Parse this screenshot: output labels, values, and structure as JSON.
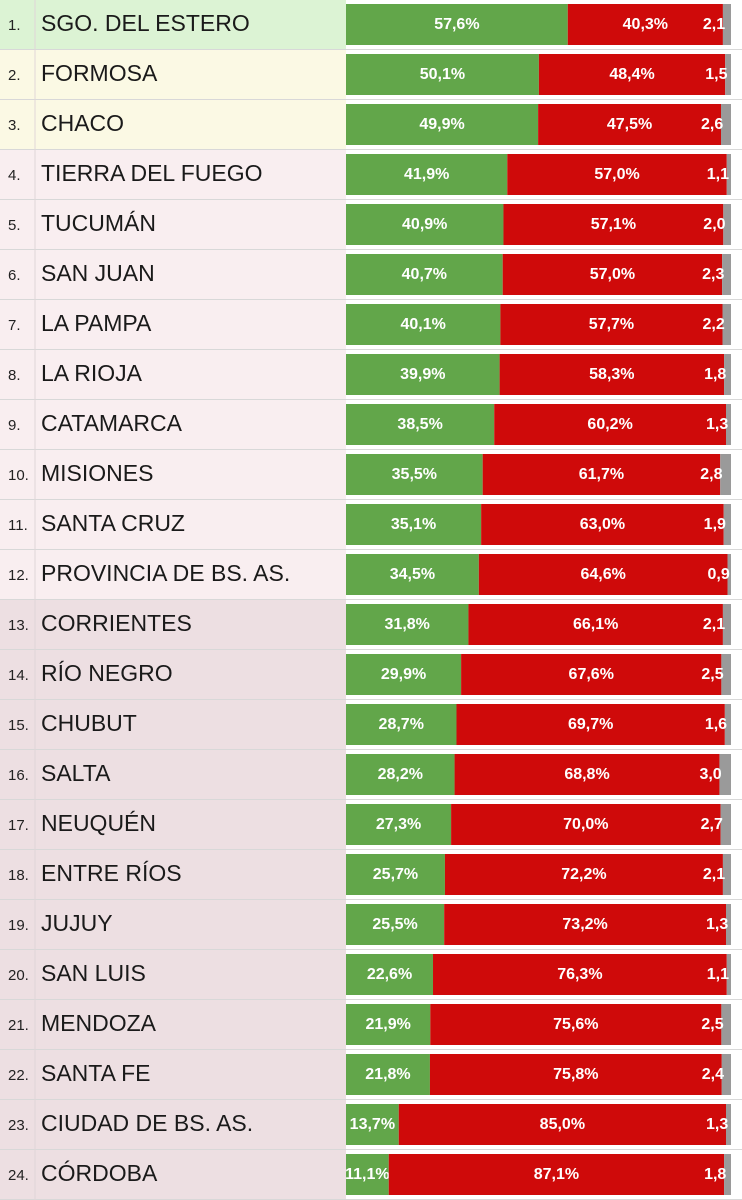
{
  "chart_data": {
    "type": "bar",
    "orientation": "horizontal",
    "stacked": true,
    "ranks": [
      "1.",
      "2.",
      "3.",
      "4.",
      "5.",
      "6.",
      "7.",
      "8.",
      "9.",
      "10.",
      "11.",
      "12.",
      "13.",
      "14.",
      "15.",
      "16.",
      "17.",
      "18.",
      "19.",
      "20.",
      "21.",
      "22.",
      "23.",
      "24."
    ],
    "categories": [
      "SGO. DEL ESTERO",
      "FORMOSA",
      "CHACO",
      "TIERRA DEL FUEGO",
      "TUCUMÁN",
      "SAN JUAN",
      "LA PAMPA",
      "LA RIOJA",
      "CATAMARCA",
      "MISIONES",
      "SANTA CRUZ",
      "PROVINCIA DE BS. AS.",
      "CORRIENTES",
      "RÍO NEGRO",
      "CHUBUT",
      "SALTA",
      "NEUQUÉN",
      "ENTRE RÍOS",
      "JUJUY",
      "SAN LUIS",
      "MENDOZA",
      "SANTA FE",
      "CIUDAD DE BS. AS.",
      "CÓRDOBA"
    ],
    "row_colors": [
      "#dcf3d4",
      "#fbf9e4",
      "#fbf9e4",
      "#f9eef0",
      "#f9eef0",
      "#f9eef0",
      "#f9eef0",
      "#f9eef0",
      "#f9eef0",
      "#f9eef0",
      "#f9eef0",
      "#f9eef0",
      "#eddfe2",
      "#eddfe2",
      "#eddfe2",
      "#eddfe2",
      "#eddfe2",
      "#eddfe2",
      "#eddfe2",
      "#eddfe2",
      "#eddfe2",
      "#eddfe2",
      "#eddfe2",
      "#eddfe2"
    ],
    "xlim": [
      0,
      100
    ],
    "series": [
      {
        "color": "#62a64a",
        "values": [
          57.6,
          50.1,
          49.9,
          41.9,
          40.9,
          40.7,
          40.1,
          39.9,
          38.5,
          35.5,
          35.1,
          34.5,
          31.8,
          29.9,
          28.7,
          28.2,
          27.3,
          25.7,
          25.5,
          22.6,
          21.9,
          21.8,
          13.7,
          11.1
        ],
        "value_labels": [
          "57,6%",
          "50,1%",
          "49,9%",
          "41,9%",
          "40,9%",
          "40,7%",
          "40,1%",
          "39,9%",
          "38,5%",
          "35,5%",
          "35,1%",
          "34,5%",
          "31,8%",
          "29,9%",
          "28,7%",
          "28,2%",
          "27,3%",
          "25,7%",
          "25,5%",
          "22,6%",
          "21,9%",
          "21,8%",
          "13,7%",
          "11,1%"
        ]
      },
      {
        "color": "#cf0a0a",
        "values": [
          40.3,
          48.4,
          47.5,
          57.0,
          57.1,
          57.0,
          57.7,
          58.3,
          60.2,
          61.7,
          63.0,
          64.6,
          66.1,
          67.6,
          69.7,
          68.8,
          70.0,
          72.2,
          73.2,
          76.3,
          75.6,
          75.8,
          85.0,
          87.1
        ],
        "value_labels": [
          "40,3%",
          "48,4%",
          "47,5%",
          "57,0%",
          "57,1%",
          "57,0%",
          "57,7%",
          "58,3%",
          "60,2%",
          "61,7%",
          "63,0%",
          "64,6%",
          "66,1%",
          "67,6%",
          "69,7%",
          "68,8%",
          "70,0%",
          "72,2%",
          "73,2%",
          "76,3%",
          "75,6%",
          "75,8%",
          "85,0%",
          "87,1%"
        ]
      },
      {
        "color": "#9a9a9a",
        "values": [
          2.1,
          1.5,
          2.6,
          1.1,
          2.0,
          2.3,
          2.2,
          1.8,
          1.3,
          2.8,
          1.9,
          0.9,
          2.1,
          2.5,
          1.6,
          3.0,
          2.7,
          2.1,
          1.3,
          1.1,
          2.5,
          2.4,
          1.3,
          1.8
        ],
        "value_labels": [
          "2,1",
          "1,5",
          "2,6",
          "1,1",
          "2,0",
          "2,3",
          "2,2",
          "1,8",
          "1,3",
          "2,8",
          "1,9",
          "0,9",
          "2,1",
          "2,5",
          "1,6",
          "3,0",
          "2,7",
          "2,1",
          "1,3",
          "1,1",
          "2,5",
          "2,4",
          "1,3",
          "1,8"
        ]
      }
    ]
  }
}
